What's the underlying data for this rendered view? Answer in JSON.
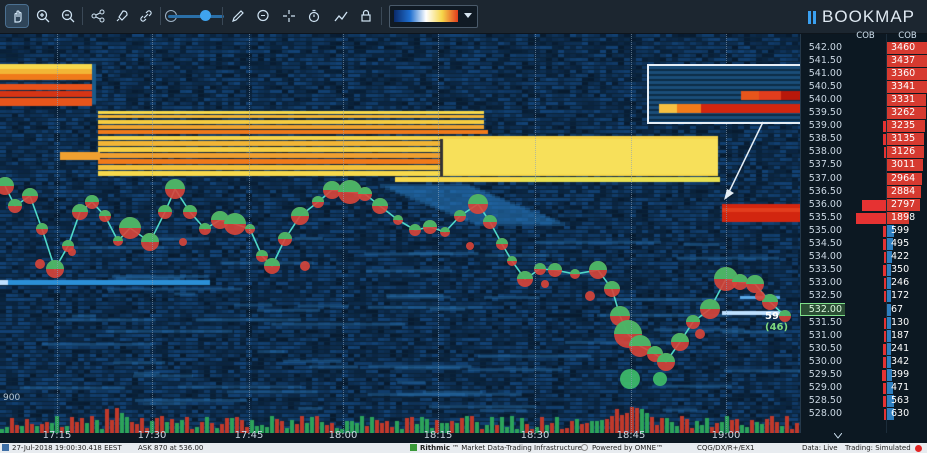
{
  "brand": {
    "name": "BOOKMAP"
  },
  "toolbar": {
    "tools": [
      {
        "id": "hand",
        "icon": "hand-pointer-icon",
        "active": true
      },
      {
        "id": "zoom-in",
        "icon": "zoom-in-icon"
      },
      {
        "id": "zoom-out",
        "icon": "zoom-out-icon"
      },
      {
        "id": "share",
        "icon": "share-icon"
      },
      {
        "id": "rocket",
        "icon": "rocket-icon"
      },
      {
        "id": "link",
        "icon": "link-icon"
      },
      {
        "id": "pencil",
        "icon": "pencil-icon"
      },
      {
        "id": "chat",
        "icon": "chat-bubble-icon"
      },
      {
        "id": "crosshair",
        "icon": "crosshair-icon"
      },
      {
        "id": "timer",
        "icon": "stopwatch-icon"
      },
      {
        "id": "indicators",
        "icon": "line-chart-icon"
      },
      {
        "id": "lock",
        "icon": "lock-icon"
      }
    ],
    "zoom_level": 0.62,
    "colormap": {
      "icon": "colormap-dropdown-icon"
    }
  },
  "colors": {
    "bid_bubble": "#3fbf6a",
    "ask_bubble": "#d8453a",
    "high_liquidity": "#f7d94c",
    "heat_orange": "#f07a1a",
    "heat_red": "#d2260f",
    "background": "#0c2438",
    "cob_bar": "#e63232"
  },
  "price_axis": {
    "ticks": [
      "542.00",
      "541.50",
      "541.00",
      "540.50",
      "540.00",
      "539.50",
      "539.00",
      "538.50",
      "538.00",
      "537.50",
      "537.00",
      "536.50",
      "536.00",
      "535.50",
      "535.00",
      "534.50",
      "534.00",
      "533.50",
      "533.00",
      "532.50",
      "532.00",
      "531.50",
      "531.00",
      "530.50",
      "530.00",
      "529.50",
      "529.00",
      "528.50",
      "528.00"
    ],
    "highlighted": "532.00"
  },
  "cob": {
    "header1": "COB",
    "header2": "COB",
    "values": [
      "3460",
      "3437",
      "3360",
      "3341",
      "3331",
      "3262",
      "3235",
      "3135",
      "3126",
      "3011",
      "2964",
      "2884",
      "2797",
      "1898",
      "599",
      "495",
      "422",
      "350",
      "246",
      "172",
      "67",
      "130",
      "187",
      "241",
      "342",
      "399",
      "471",
      "563",
      "630"
    ]
  },
  "time_axis": {
    "labels": [
      "17:15",
      "17:30",
      "17:45",
      "18:00",
      "18:15",
      "18:30",
      "18:45",
      "19:00"
    ]
  },
  "volume_label": "900",
  "last_trade": {
    "size": "59",
    "paren": "(46)"
  },
  "status": {
    "timestamp": "27-Jul-2018 19:00:30.418 EEST",
    "ask": "ASK 870 at 536.00",
    "rithmic": "Rithmic",
    "rithmic_sub": "™ Market Data-Trading Infrastructure",
    "omne": "Powered by OMNE™",
    "instrument": "CQG/DX/R+/EX1",
    "data": "Data: Live",
    "trading": "Trading: Simulated"
  }
}
